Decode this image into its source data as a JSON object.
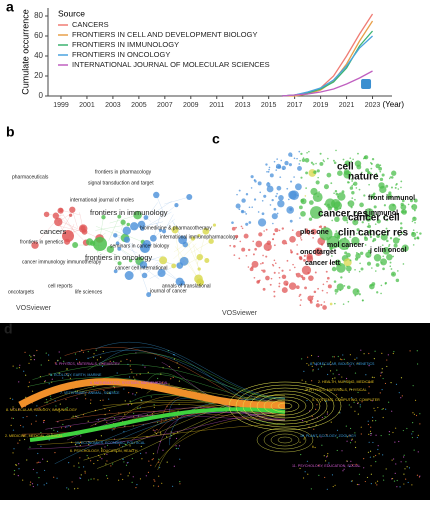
{
  "chart_data": {
    "type": "line",
    "panel_label": "a",
    "y_label": "Cumulate occurrence",
    "x_unit_label": "(Year)",
    "legend_title": "Source",
    "x": [
      2016,
      2017,
      2018,
      2019,
      2020,
      2021,
      2022,
      2023
    ],
    "xlim": [
      1998,
      2024.5
    ],
    "xticks": [
      1999,
      2001,
      2003,
      2005,
      2007,
      2009,
      2011,
      2013,
      2015,
      2017,
      2019,
      2021,
      2023
    ],
    "ylim": [
      0,
      88
    ],
    "yticks": [
      0,
      20,
      40,
      60,
      80
    ],
    "series": [
      {
        "name": "CANCERS",
        "color": "#f07c74",
        "values": [
          0,
          1,
          3,
          8,
          20,
          40,
          62,
          82
        ]
      },
      {
        "name": "FRONTIERS IN CELL AND DEVELOPMENT BIOLOGY",
        "color": "#e8a04a",
        "values": [
          0,
          0,
          2,
          6,
          15,
          32,
          55,
          75
        ]
      },
      {
        "name": "FRONTIERS IN IMMUNOLOGY",
        "color": "#3cb371",
        "values": [
          0,
          1,
          3,
          7,
          14,
          28,
          50,
          65
        ]
      },
      {
        "name": "FRONTIERS IN ONCOLOGY",
        "color": "#4aa3df",
        "values": [
          0,
          1,
          4,
          8,
          16,
          30,
          48,
          60
        ]
      },
      {
        "name": "INTERNATIONAL JOURNAL OF MOLECULAR SCIENCES",
        "color": "#c060c0",
        "values": [
          0,
          1,
          2,
          4,
          7,
          12,
          18,
          25
        ]
      }
    ]
  },
  "network_b": {
    "label": "b",
    "watermark": "VOSviewer",
    "nodes": [
      "frontiers in pharmacology",
      "pharmaceuticals",
      "signal transduction and target",
      "international journal of moles",
      "frontiers in immunology",
      "cancers",
      "biomedicine & pharmacotherapy",
      "international immunopharmacology",
      "seminars in cancer biology",
      "frontiers in oncology",
      "cancer cell international",
      "annals of translational",
      "journal of cancer",
      "cancer immunology immunotherapy",
      "cell reports",
      "life sciences",
      "oncotargets",
      "frontiers in genetics"
    ]
  },
  "network_c": {
    "label": "c",
    "watermark": "VOSviewer",
    "nodes": [
      "cell",
      "nature",
      "cancer res",
      "cancer cell",
      "clin cancer res",
      "j immunol",
      "j clin oncol",
      "plos one",
      "oncotarget",
      "mol cancer",
      "cancer lett",
      "front immunol"
    ]
  },
  "overlay_d": {
    "label": "d",
    "clusters": [
      "4. PHYSICS, MATERIALS, CHEMISTRY",
      "5. ECOLOGY, EARTH, MARINE",
      "6. MATHEMATICS, SYSTEMS, MATHEMATICAL",
      "7. VETERINARY, ANIMAL, SCIENCE",
      "8. MOLECULAR, BIOLOGY, IMMUNOLOGY",
      "2. MEDICINE, MEDICAL, CLINICAL",
      "10. ECONOMICS, ECONOMIC, POLITICAL",
      "6. PSYCHOLOGY, EDUCATION, HEALTH",
      "8. MOLECULAR, BIOLOGY, GENETICS",
      "2. HEALTH, NURSING, MEDICINE",
      "3. PHYSICS, MATERIALS, PHYSICAL",
      "5. SYSTEMS, COMPUTING, COMPUTER",
      "10. PLANT, ECOLOGY, ZOOLOGY",
      "11. PSYCHOLOGY, EDUCATION, SOCIAL"
    ]
  }
}
